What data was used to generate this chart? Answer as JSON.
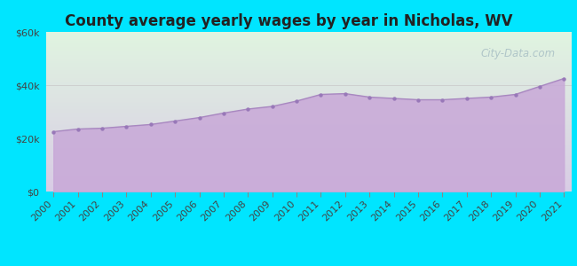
{
  "title": "County average yearly wages by year in Nicholas, WV",
  "years": [
    2000,
    2001,
    2002,
    2003,
    2004,
    2005,
    2006,
    2007,
    2008,
    2009,
    2010,
    2011,
    2012,
    2013,
    2014,
    2015,
    2016,
    2017,
    2018,
    2019,
    2020,
    2021
  ],
  "wages": [
    22500,
    23500,
    23800,
    24500,
    25200,
    26500,
    27800,
    29500,
    31000,
    32000,
    34000,
    36500,
    36800,
    35500,
    35000,
    34500,
    34500,
    35000,
    35500,
    36500,
    39500,
    42500
  ],
  "ylim": [
    0,
    60000
  ],
  "yticks": [
    0,
    20000,
    40000,
    60000
  ],
  "ytick_labels": [
    "$0",
    "$20k",
    "$40k",
    "$60k"
  ],
  "background_outer": "#00e5ff",
  "fill_color": "#c8a8d8",
  "line_color": "#a888c0",
  "dot_color": "#9878b8",
  "watermark": "City-Data.com",
  "title_fontsize": 12,
  "tick_fontsize": 8
}
